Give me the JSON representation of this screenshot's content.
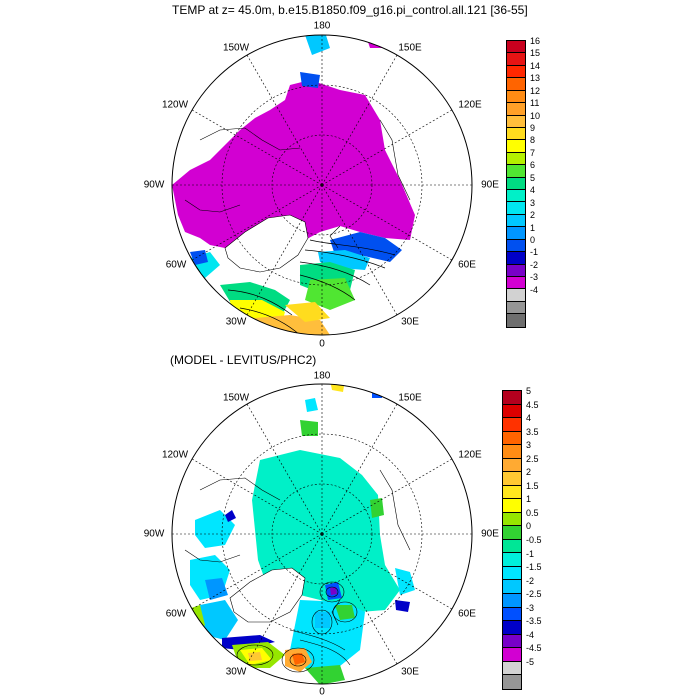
{
  "panels": [
    {
      "title": "TEMP at z=  45.0m, b.e15.B1850.f09_g16.pi_control.all.121 [36-55]",
      "lon_labels": {
        "n": "180",
        "nw": "150W",
        "ne": "150E",
        "wnw": "120W",
        "ene": "120E",
        "w": "90W",
        "e": "90E",
        "wsw": "60W",
        "ese": "60E",
        "sw": "30W",
        "se": "30E",
        "s": "0"
      },
      "colorbar": {
        "labels": [
          "16",
          "15",
          "14",
          "13",
          "12",
          "11",
          "10",
          "9",
          "8",
          "7",
          "6",
          "5",
          "4",
          "3",
          "2",
          "1",
          "0",
          "-1",
          "-2",
          "-3",
          "-4"
        ],
        "colors": [
          "#c8001e",
          "#e61414",
          "#ff2800",
          "#ff6400",
          "#ff8c14",
          "#ffa028",
          "#ffbe3c",
          "#ffdc1e",
          "#ffff00",
          "#b4f000",
          "#50e632",
          "#00dc82",
          "#00f0c8",
          "#00e6f0",
          "#00c8ff",
          "#0096ff",
          "#0050f0",
          "#0000c8",
          "#7800c8",
          "#d200d2",
          "#d2d2d2",
          "#969696",
          "#6e6e6e"
        ]
      }
    },
    {
      "title": "(MODEL - LEVITUS/PHC2)",
      "lon_labels": {
        "n": "180",
        "nw": "150W",
        "ne": "150E",
        "wnw": "120W",
        "ene": "120E",
        "w": "90W",
        "e": "90E",
        "wsw": "60W",
        "ese": "60E",
        "sw": "30W",
        "se": "30E",
        "s": "0"
      },
      "colorbar": {
        "labels": [
          "5",
          "4.5",
          "4",
          "3.5",
          "3",
          "2.5",
          "2",
          "1.5",
          "1",
          "0.5",
          "0",
          "-0.5",
          "-1",
          "-1.5",
          "-2",
          "-2.5",
          "-3",
          "-3.5",
          "-4",
          "-4.5",
          "-5"
        ],
        "colors": [
          "#b4001e",
          "#dc0000",
          "#ff3200",
          "#ff6400",
          "#ff8c14",
          "#ffaa32",
          "#ffc832",
          "#ffe61e",
          "#ffff00",
          "#96e600",
          "#32d232",
          "#00e696",
          "#00f0dc",
          "#00e6ff",
          "#00c8ff",
          "#0096ff",
          "#0050ff",
          "#0000c8",
          "#7800c8",
          "#d200d2",
          "#d2d2d2",
          "#969696"
        ]
      }
    }
  ],
  "fill_colors": {
    "ocean_cold": "#d200d2",
    "ocean_zero": "#00f0c8",
    "warm": "#ffdc1e",
    "land": "#ffffff"
  }
}
